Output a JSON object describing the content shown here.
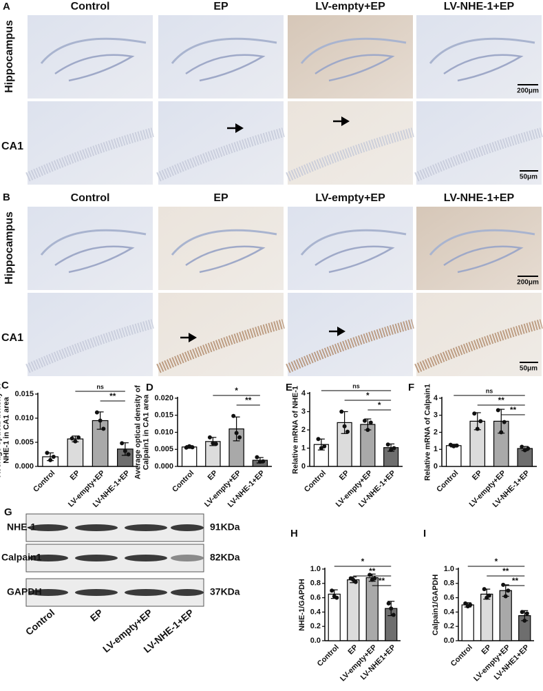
{
  "panels": {
    "A": {
      "letter": "A",
      "columns": [
        "Control",
        "EP",
        "LV-empty+EP",
        "LV-NHE-1+EP"
      ],
      "rows": [
        "Hippocampus",
        "CA1"
      ],
      "scale_bars": [
        "200μm",
        "50μm"
      ]
    },
    "B": {
      "letter": "B",
      "columns": [
        "Control",
        "EP",
        "LV-empty+EP",
        "LV-NHE-1+EP"
      ],
      "rows": [
        "Hippocampus",
        "CA1"
      ],
      "scale_bars": [
        "200μm",
        "50μm"
      ]
    },
    "G": {
      "letter": "G",
      "bands": [
        {
          "protein": "NHE-1",
          "size": "91KDa"
        },
        {
          "protein": "Calpain1",
          "size": "82KDa"
        },
        {
          "protein": "GAPDH",
          "size": "37KDa"
        }
      ],
      "lanes": [
        "Control",
        "EP",
        "LV-empty+EP",
        "LV-NHE-1+EP"
      ]
    }
  },
  "chart_data": [
    {
      "type": "bar",
      "panel": "C",
      "ylabel": [
        "Average optical density of",
        "NHE-1 in CA1 area"
      ],
      "categories": [
        "Control",
        "EP",
        "LV-empty+EP",
        "LV-NHE-1+EP"
      ],
      "values": [
        0.002,
        0.0057,
        0.0095,
        0.0036
      ],
      "errors": [
        0.0008,
        0.0006,
        0.0018,
        0.0013
      ],
      "points": [
        [
          0.0028,
          0.0013,
          0.002
        ],
        [
          0.0058,
          0.0052,
          0.006
        ],
        [
          0.0112,
          0.0095,
          0.0078
        ],
        [
          0.0048,
          0.0032,
          0.0025
        ]
      ],
      "colors": [
        "#ffffff",
        "#dcdcdc",
        "#a9a9a9",
        "#6e6e6e"
      ],
      "ylim": [
        0,
        0.015
      ],
      "yticks": [
        {
          "value": 0,
          "label": "0.000"
        },
        {
          "value": 0.005,
          "label": "0.005"
        },
        {
          "value": 0.01,
          "label": "0.010"
        },
        {
          "value": 0.015,
          "label": "0.015"
        }
      ],
      "comparisons": [
        {
          "groups": [
            "EP",
            "LV-NHE-1+EP"
          ],
          "label": "ns"
        },
        {
          "groups": [
            "LV-empty+EP",
            "LV-NHE-1+EP"
          ],
          "label": "**"
        }
      ]
    },
    {
      "type": "bar",
      "panel": "D",
      "ylabel": [
        "Average optical density of",
        "Calpain1 in CA1 area"
      ],
      "categories": [
        "Control",
        "EP",
        "LV-empty+EP",
        "LV-NHE-1+EP"
      ],
      "values": [
        0.0057,
        0.0073,
        0.011,
        0.0018
      ],
      "errors": [
        0.0004,
        0.0012,
        0.0035,
        0.0008
      ],
      "points": [
        [
          0.0055,
          0.0059,
          0.0056
        ],
        [
          0.0085,
          0.0068,
          0.0066
        ],
        [
          0.0148,
          0.0098,
          0.0085
        ],
        [
          0.0027,
          0.0014,
          0.0015
        ]
      ],
      "colors": [
        "#ffffff",
        "#dcdcdc",
        "#a9a9a9",
        "#6e6e6e"
      ],
      "ylim": [
        0,
        0.02
      ],
      "yticks": [
        {
          "value": 0,
          "label": "0.000"
        },
        {
          "value": 0.005,
          "label": "0.005"
        },
        {
          "value": 0.01,
          "label": "0.010"
        },
        {
          "value": 0.015,
          "label": "0.015"
        },
        {
          "value": 0.02,
          "label": "0.020"
        }
      ],
      "comparisons": [
        {
          "groups": [
            "EP",
            "LV-NHE-1+EP"
          ],
          "label": "*"
        },
        {
          "groups": [
            "LV-empty+EP",
            "LV-NHE-1+EP"
          ],
          "label": "**"
        }
      ]
    },
    {
      "type": "bar",
      "panel": "E",
      "ylabel": [
        "Relative mRNA of NHE-1"
      ],
      "categories": [
        "Control",
        "EP",
        "LV-empty+EP",
        "LV-NHE-1+EP"
      ],
      "values": [
        1.2,
        2.4,
        2.3,
        1.03
      ],
      "errors": [
        0.3,
        0.6,
        0.3,
        0.2
      ],
      "points": [
        [
          1.5,
          1.0,
          1.1
        ],
        [
          3.0,
          2.2,
          1.9
        ],
        [
          2.5,
          2.0,
          2.4
        ],
        [
          1.2,
          0.9,
          1.0
        ]
      ],
      "colors": [
        "#ffffff",
        "#dcdcdc",
        "#a9a9a9",
        "#6e6e6e"
      ],
      "ylim": [
        0,
        4
      ],
      "yticks": [
        0,
        1,
        2,
        3,
        4
      ],
      "comparisons": [
        {
          "groups": [
            "Control",
            "LV-NHE-1+EP"
          ],
          "label": "ns"
        },
        {
          "groups": [
            "EP",
            "LV-NHE-1+EP"
          ],
          "label": "*"
        },
        {
          "groups": [
            "LV-empty+EP",
            "LV-NHE-1+EP"
          ],
          "label": "*"
        }
      ]
    },
    {
      "type": "bar",
      "panel": "F",
      "ylabel": [
        "Relative mRNA of Calpain1"
      ],
      "categories": [
        "Control",
        "EP",
        "LV-empty+EP",
        "LV-NHE-1+EP"
      ],
      "values": [
        1.22,
        2.65,
        2.65,
        1.05
      ],
      "errors": [
        0.08,
        0.5,
        0.7,
        0.12
      ],
      "points": [
        [
          1.27,
          1.18,
          1.22
        ],
        [
          3.1,
          2.2,
          2.65
        ],
        [
          3.3,
          2.0,
          2.6
        ],
        [
          1.15,
          0.95,
          1.05
        ]
      ],
      "colors": [
        "#ffffff",
        "#dcdcdc",
        "#a9a9a9",
        "#6e6e6e"
      ],
      "ylim": [
        0,
        4
      ],
      "yticks": [
        0,
        1,
        2,
        3,
        4
      ],
      "comparisons": [
        {
          "groups": [
            "Control",
            "LV-NHE-1+EP"
          ],
          "label": "ns"
        },
        {
          "groups": [
            "EP",
            "LV-NHE-1+EP"
          ],
          "label": "**"
        },
        {
          "groups": [
            "LV-empty+EP",
            "LV-NHE-1+EP"
          ],
          "label": "**"
        }
      ]
    },
    {
      "type": "bar",
      "panel": "H",
      "ylabel": [
        "NHE-1/GAPDH"
      ],
      "categories": [
        "Control",
        "EP",
        "LV-empty+EP",
        "LV-NHE1+EP"
      ],
      "values": [
        0.65,
        0.85,
        0.88,
        0.45
      ],
      "errors": [
        0.06,
        0.04,
        0.05,
        0.1
      ],
      "points": [
        [
          0.7,
          0.62,
          0.6
        ],
        [
          0.87,
          0.85,
          0.82
        ],
        [
          0.92,
          0.85,
          0.87
        ],
        [
          0.52,
          0.45,
          0.36
        ]
      ],
      "colors": [
        "#ffffff",
        "#dcdcdc",
        "#a9a9a9",
        "#6e6e6e"
      ],
      "ylim": [
        0,
        1
      ],
      "yticks": [
        {
          "value": 0,
          "label": "0.0"
        },
        0.2,
        0.4,
        0.6,
        0.8,
        {
          "value": 1,
          "label": "1.0"
        }
      ],
      "comparisons": [
        {
          "groups": [
            "Control",
            "LV-NHE1+EP"
          ],
          "label": "*"
        },
        {
          "groups": [
            "EP",
            "LV-NHE1+EP"
          ],
          "label": "**"
        },
        {
          "groups": [
            "LV-empty+EP",
            "LV-NHE1+EP"
          ],
          "label": "**"
        }
      ]
    },
    {
      "type": "bar",
      "panel": "I",
      "ylabel": [
        "Calpain1/GAPDH"
      ],
      "categories": [
        "Control",
        "EP",
        "LV-empty+EP",
        "LV-NHE1+EP"
      ],
      "values": [
        0.5,
        0.65,
        0.7,
        0.35
      ],
      "errors": [
        0.03,
        0.07,
        0.08,
        0.07
      ],
      "points": [
        [
          0.52,
          0.48,
          0.5
        ],
        [
          0.72,
          0.6,
          0.63
        ],
        [
          0.78,
          0.62,
          0.7
        ],
        [
          0.4,
          0.28,
          0.38
        ]
      ],
      "colors": [
        "#ffffff",
        "#dcdcdc",
        "#a9a9a9",
        "#6e6e6e"
      ],
      "ylim": [
        0,
        1
      ],
      "yticks": [
        {
          "value": 0,
          "label": "0.0"
        },
        0.2,
        0.4,
        0.6,
        0.8,
        {
          "value": 1,
          "label": "1.0"
        }
      ],
      "comparisons": [
        {
          "groups": [
            "Control",
            "LV-NHE1+EP"
          ],
          "label": "*"
        },
        {
          "groups": [
            "EP",
            "LV-NHE1+EP"
          ],
          "label": "**"
        },
        {
          "groups": [
            "LV-empty+EP",
            "LV-NHE1+EP"
          ],
          "label": "**"
        }
      ]
    }
  ]
}
